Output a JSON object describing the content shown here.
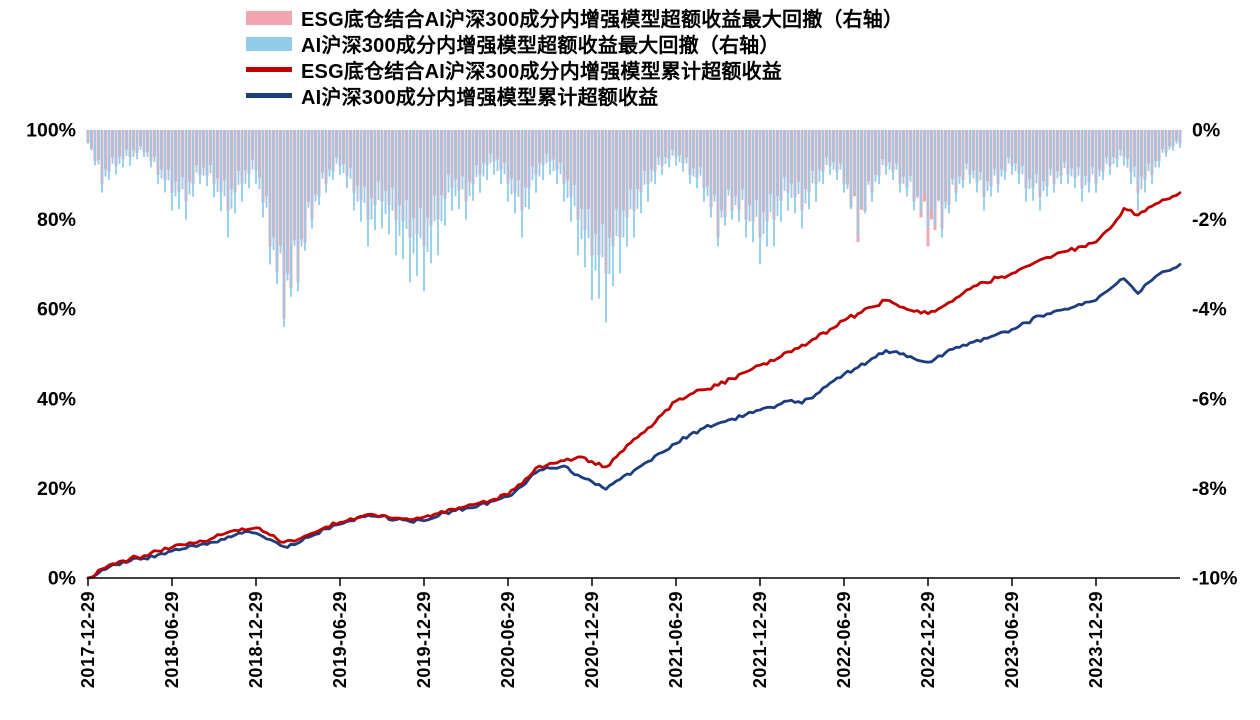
{
  "chart_data": {
    "type": "combo-line-bar",
    "title": "",
    "legend_position": "top",
    "background": "#ffffff",
    "x": {
      "unit": "months-from-start",
      "months_total": 78,
      "tick_month_indexes": [
        0,
        6,
        12,
        18,
        24,
        30,
        36,
        42,
        48,
        54,
        60,
        66,
        72
      ],
      "tick_labels": [
        "2017-12-29",
        "2018-06-29",
        "2018-12-29",
        "2019-06-29",
        "2019-12-29",
        "2020-06-29",
        "2020-12-29",
        "2021-06-29",
        "2021-12-29",
        "2022-06-29",
        "2022-12-29",
        "2023-06-29",
        "2023-12-29"
      ]
    },
    "left_axis": {
      "min": 0,
      "max": 100,
      "ticks": [
        "100%",
        "80%",
        "60%",
        "40%",
        "20%",
        "0%"
      ],
      "tick_values": [
        100,
        80,
        60,
        40,
        20,
        0
      ]
    },
    "right_axis": {
      "min": -10,
      "max": 0,
      "ticks": [
        "0%",
        "-2%",
        "-4%",
        "-6%",
        "-8%",
        "-10%"
      ],
      "tick_values": [
        0,
        -2,
        -4,
        -6,
        -8,
        -10
      ]
    },
    "series": [
      {
        "name": "ESG底仓结合AI沪深300成分内增强模型超额收益最大回撤（右轴）",
        "type": "bar",
        "axis": "right",
        "color": "#F4A6B0",
        "values": [
          -0.3,
          -1.2,
          -0.8,
          -0.6,
          -0.5,
          -1,
          -1.4,
          -1.6,
          -1,
          -1.2,
          -1.8,
          -1.2,
          -0.9,
          -2.6,
          -4.2,
          -3.4,
          -2,
          -1.2,
          -0.8,
          -1.4,
          -2,
          -1.6,
          -2,
          -2.4,
          -2.6,
          -2,
          -1.3,
          -1.6,
          -1,
          -0.7,
          -1.2,
          -1.8,
          -1,
          -0.7,
          -1.2,
          -2,
          -2.8,
          -3.2,
          -2.4,
          -1.8,
          -1.2,
          -0.8,
          -0.6,
          -1,
          -1.3,
          -2.4,
          -1.8,
          -2,
          -2.4,
          -2,
          -1.4,
          -1.8,
          -1.2,
          -0.8,
          -1.2,
          -2.5,
          -1.4,
          -0.8,
          -1.2,
          -1.6,
          -2.6,
          -2.2,
          -1.4,
          -1,
          -1.5,
          -1.2,
          -0.8,
          -1.3,
          -1.5,
          -1.2,
          -1,
          -1.3,
          -1.2,
          -0.8,
          -0.6,
          -1.4,
          -1,
          -0.5,
          -0.3
        ]
      },
      {
        "name": "AI沪深300成分内增强模型超额收益最大回撤（右轴）",
        "type": "bar",
        "axis": "right",
        "color": "#92CCEA",
        "values": [
          -0.3,
          -1.4,
          -1,
          -0.8,
          -0.6,
          -1.2,
          -1.8,
          -2,
          -1.2,
          -1.5,
          -2.4,
          -1.6,
          -1.2,
          -3,
          -4.4,
          -3.6,
          -2.2,
          -1.4,
          -1,
          -1.8,
          -2.6,
          -2.2,
          -2.8,
          -3.4,
          -3.6,
          -2.8,
          -1.8,
          -2,
          -1.4,
          -1,
          -1.6,
          -2.4,
          -1.4,
          -1,
          -1.6,
          -2.8,
          -3.8,
          -4.3,
          -3.2,
          -2.4,
          -1.6,
          -1,
          -0.8,
          -1.2,
          -1.6,
          -2.6,
          -2,
          -2.4,
          -3,
          -2.6,
          -1.8,
          -2.2,
          -1.6,
          -1,
          -1.4,
          -2.4,
          -1.6,
          -1,
          -1.4,
          -1.8,
          -2.2,
          -2.4,
          -1.6,
          -1.2,
          -1.8,
          -1.4,
          -1,
          -1.6,
          -1.8,
          -1.4,
          -1.2,
          -1.6,
          -1.4,
          -1,
          -0.8,
          -1.8,
          -1.2,
          -0.6,
          -0.4
        ]
      },
      {
        "name": "ESG底仓结合AI沪深300成分内增强模型累计超额收益",
        "type": "line",
        "axis": "left",
        "color": "#C00000",
        "values": [
          0,
          2,
          3.2,
          4.3,
          5,
          6,
          6.8,
          7.4,
          8.3,
          9,
          10.2,
          11,
          11.2,
          9.6,
          8,
          8.6,
          10,
          11.4,
          12.4,
          13,
          14.2,
          14,
          13.4,
          13,
          13.6,
          14.4,
          15.4,
          16,
          16.8,
          17.6,
          18.6,
          21,
          24.6,
          25.6,
          26.2,
          27,
          26,
          24.8,
          28,
          31,
          33.5,
          36.5,
          39.5,
          41,
          42,
          43,
          44.5,
          46,
          47.5,
          48.5,
          50.5,
          52,
          53.5,
          55.5,
          57.5,
          59,
          60.5,
          62,
          60.5,
          59.5,
          59,
          60.5,
          62.5,
          64.5,
          66,
          67,
          68,
          69.5,
          71,
          72,
          73,
          74,
          75,
          78,
          82.5,
          81,
          83,
          84.5,
          86
        ]
      },
      {
        "name": "AI沪深300成分内增强模型累计超额收益",
        "type": "line",
        "axis": "left",
        "color": "#1C3D7E",
        "values": [
          0,
          1.8,
          3,
          3.8,
          4.4,
          5.2,
          6,
          6.6,
          7.4,
          8,
          9.2,
          10,
          10,
          8.6,
          7,
          7.8,
          9.4,
          11,
          12,
          12.8,
          14,
          13.8,
          13,
          12.6,
          12.8,
          13.8,
          15,
          15.6,
          16.4,
          17.2,
          18.2,
          20.5,
          23.5,
          24.5,
          25,
          23,
          21.5,
          19.8,
          22,
          24,
          26,
          28,
          30,
          32,
          33.5,
          34.5,
          35.5,
          36.5,
          37.5,
          38,
          39.5,
          39,
          41,
          43.5,
          45.5,
          47,
          49,
          50.8,
          50,
          49,
          48.2,
          49.5,
          51.5,
          52.5,
          53.5,
          54.5,
          55.5,
          57,
          58.5,
          59.5,
          60,
          61,
          62,
          64.5,
          66.8,
          63.5,
          66.5,
          68.5,
          70
        ]
      }
    ]
  }
}
